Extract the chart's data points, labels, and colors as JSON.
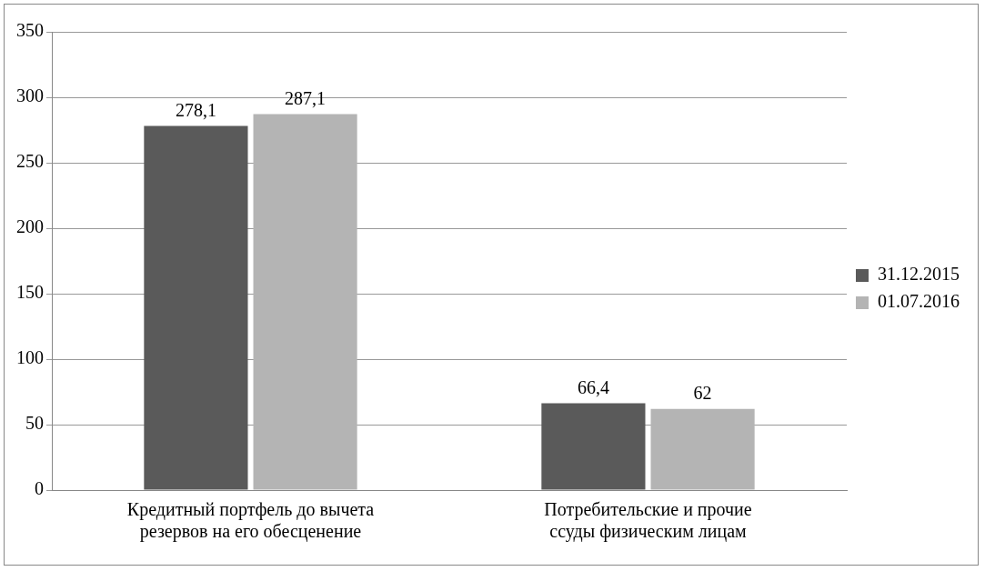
{
  "chart_data": {
    "type": "bar",
    "categories": [
      "Кредитный портфель до вычета резервов на его обесценение",
      "Потребительские и прочие ссуды физическим лицам"
    ],
    "series": [
      {
        "name": "31.12.2015",
        "color": "#5a5a5a",
        "values": [
          278.1,
          66.4
        ],
        "value_labels": [
          "278,1",
          "66,4"
        ]
      },
      {
        "name": "01.07.2016",
        "color": "#b4b4b4",
        "values": [
          287.1,
          62
        ],
        "value_labels": [
          "287,1",
          "62"
        ]
      }
    ],
    "ylim": [
      0,
      350
    ],
    "yticks": [
      0,
      50,
      100,
      150,
      200,
      250,
      300,
      350
    ],
    "grid": "y",
    "legend": "right"
  }
}
